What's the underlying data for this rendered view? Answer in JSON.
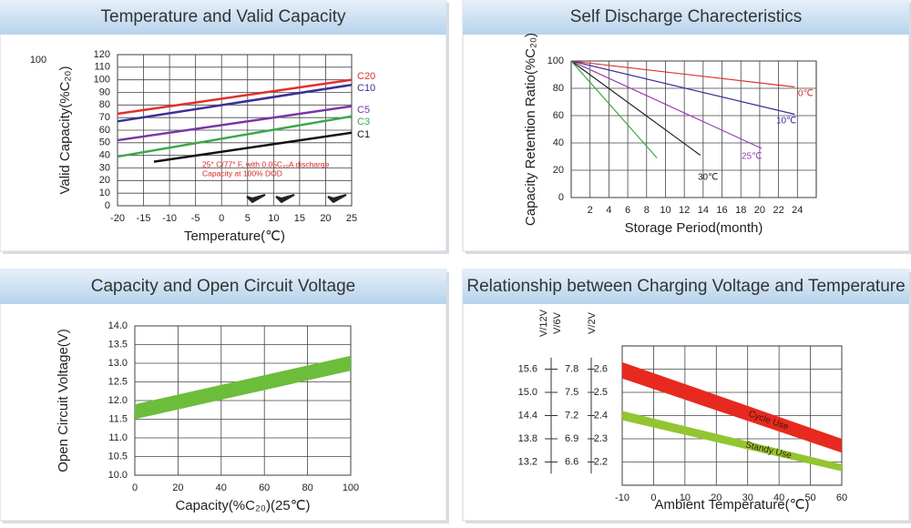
{
  "chart_data": [
    {
      "type": "line",
      "title": "Temperature and Valid Capacity",
      "corner_label": "100",
      "x_label": "Temperature(℃)",
      "y_label": "Valid Capacity(%C₂₀)",
      "xlim": [
        -20,
        25
      ],
      "xticks": [
        -20,
        -15,
        -10,
        -5,
        0,
        5,
        10,
        15,
        20,
        25
      ],
      "ylim": [
        0,
        120
      ],
      "yticks": [
        0,
        10,
        20,
        30,
        40,
        50,
        60,
        70,
        80,
        90,
        100,
        110,
        120
      ],
      "grid": true,
      "annotation": [
        "25° C/77° F, with 0.05C₂₀A discharge",
        "Capacity at 100% DOD"
      ],
      "series": [
        {
          "name": "C20",
          "color": "#e0302a",
          "x": [
            -20,
            25
          ],
          "values": [
            73,
            100
          ]
        },
        {
          "name": "C10",
          "color": "#3a2f9a",
          "x": [
            -20,
            25
          ],
          "values": [
            67,
            96
          ]
        },
        {
          "name": "C5",
          "color": "#7a35a8",
          "x": [
            -20,
            25
          ],
          "values": [
            52,
            79
          ]
        },
        {
          "name": "C3",
          "color": "#3aa84a",
          "x": [
            -20,
            25
          ],
          "values": [
            39,
            71
          ]
        },
        {
          "name": "C1",
          "color": "#111111",
          "x": [
            -13,
            25
          ],
          "values": [
            35,
            58
          ]
        }
      ]
    },
    {
      "type": "line",
      "title": "Self Discharge Charecteristics",
      "x_label": "Storage Period(month)",
      "y_label": "Capacity Retention Ratio(%C₂₀)",
      "xlim": [
        0,
        26
      ],
      "xticks": [
        2,
        4,
        6,
        8,
        10,
        12,
        14,
        16,
        18,
        20,
        22,
        24
      ],
      "ylim": [
        0,
        100
      ],
      "yticks": [
        0,
        20,
        40,
        60,
        80,
        100
      ],
      "grid": true,
      "series": [
        {
          "name": "0℃",
          "color": "#e0302a",
          "x": [
            0,
            23.7
          ],
          "values": [
            100,
            81
          ]
        },
        {
          "name": "10℃",
          "color": "#3a2f9a",
          "x": [
            0,
            23.7
          ],
          "values": [
            100,
            61
          ]
        },
        {
          "name": "25℃",
          "color": "#9b3db5",
          "x": [
            0,
            20.2
          ],
          "values": [
            100,
            36
          ]
        },
        {
          "name": "30℃",
          "color": "#222222",
          "x": [
            0,
            13.7
          ],
          "values": [
            100,
            31
          ]
        },
        {
          "color": "#3aa84a",
          "x": [
            0,
            9.1
          ],
          "values": [
            100,
            29
          ]
        }
      ]
    },
    {
      "type": "band",
      "title": "Capacity and Open Circuit Voltage",
      "x_label": "Capacity(%C₂₀)(25℃)",
      "y_label": "Open Circuit Voltage(V)",
      "xlim": [
        0,
        100
      ],
      "xticks": [
        0,
        20,
        40,
        60,
        80,
        100
      ],
      "ylim": [
        10,
        14
      ],
      "yticks": [
        {
          "value": 10,
          "label": "10.0"
        },
        10.5,
        {
          "value": 11,
          "label": "11.0"
        },
        11.5,
        {
          "value": 12,
          "label": "12.0"
        },
        12.5,
        {
          "value": 13,
          "label": "13.0"
        },
        13.5,
        {
          "value": 14,
          "label": "14.0"
        }
      ],
      "grid": true,
      "x": [
        0,
        100
      ],
      "series": [
        {
          "color": "#6cbd3c",
          "upper": [
            11.9,
            13.2
          ],
          "lower": [
            11.5,
            12.8
          ]
        }
      ]
    },
    {
      "type": "band",
      "title": "Relationship between Charging Voltage and Temperature",
      "x_label": "Ambient Temperature(℃)",
      "y_label": "V/2V",
      "xlim": [
        -10,
        60
      ],
      "xticks": [
        -10,
        0,
        10,
        20,
        30,
        40,
        50,
        60
      ],
      "ylim": [
        2.1,
        2.7
      ],
      "yticks": [
        2.2,
        2.3,
        2.4,
        2.5,
        2.6
      ],
      "grid": true,
      "extra_scales": [
        {
          "label": "V/12V",
          "lim": [
            12.6,
            16.2
          ],
          "ticks": [
            13.2,
            13.8,
            14.4,
            {
              "value": 15,
              "label": "15.0"
            },
            15.6
          ]
        },
        {
          "label": "V/6V",
          "lim": [
            6.3,
            8.1
          ],
          "ticks": [
            6.6,
            6.9,
            7.2,
            7.5,
            7.8
          ]
        }
      ],
      "x": [
        -10,
        60
      ],
      "series": [
        {
          "name": "Cycle Use",
          "color": "#e8291f",
          "upper": [
            2.63,
            2.3
          ],
          "lower": [
            2.56,
            2.24
          ]
        },
        {
          "name": "Standy Use",
          "color": "#93c531",
          "upper": [
            2.42,
            2.19
          ],
          "lower": [
            2.38,
            2.16
          ]
        }
      ]
    }
  ]
}
